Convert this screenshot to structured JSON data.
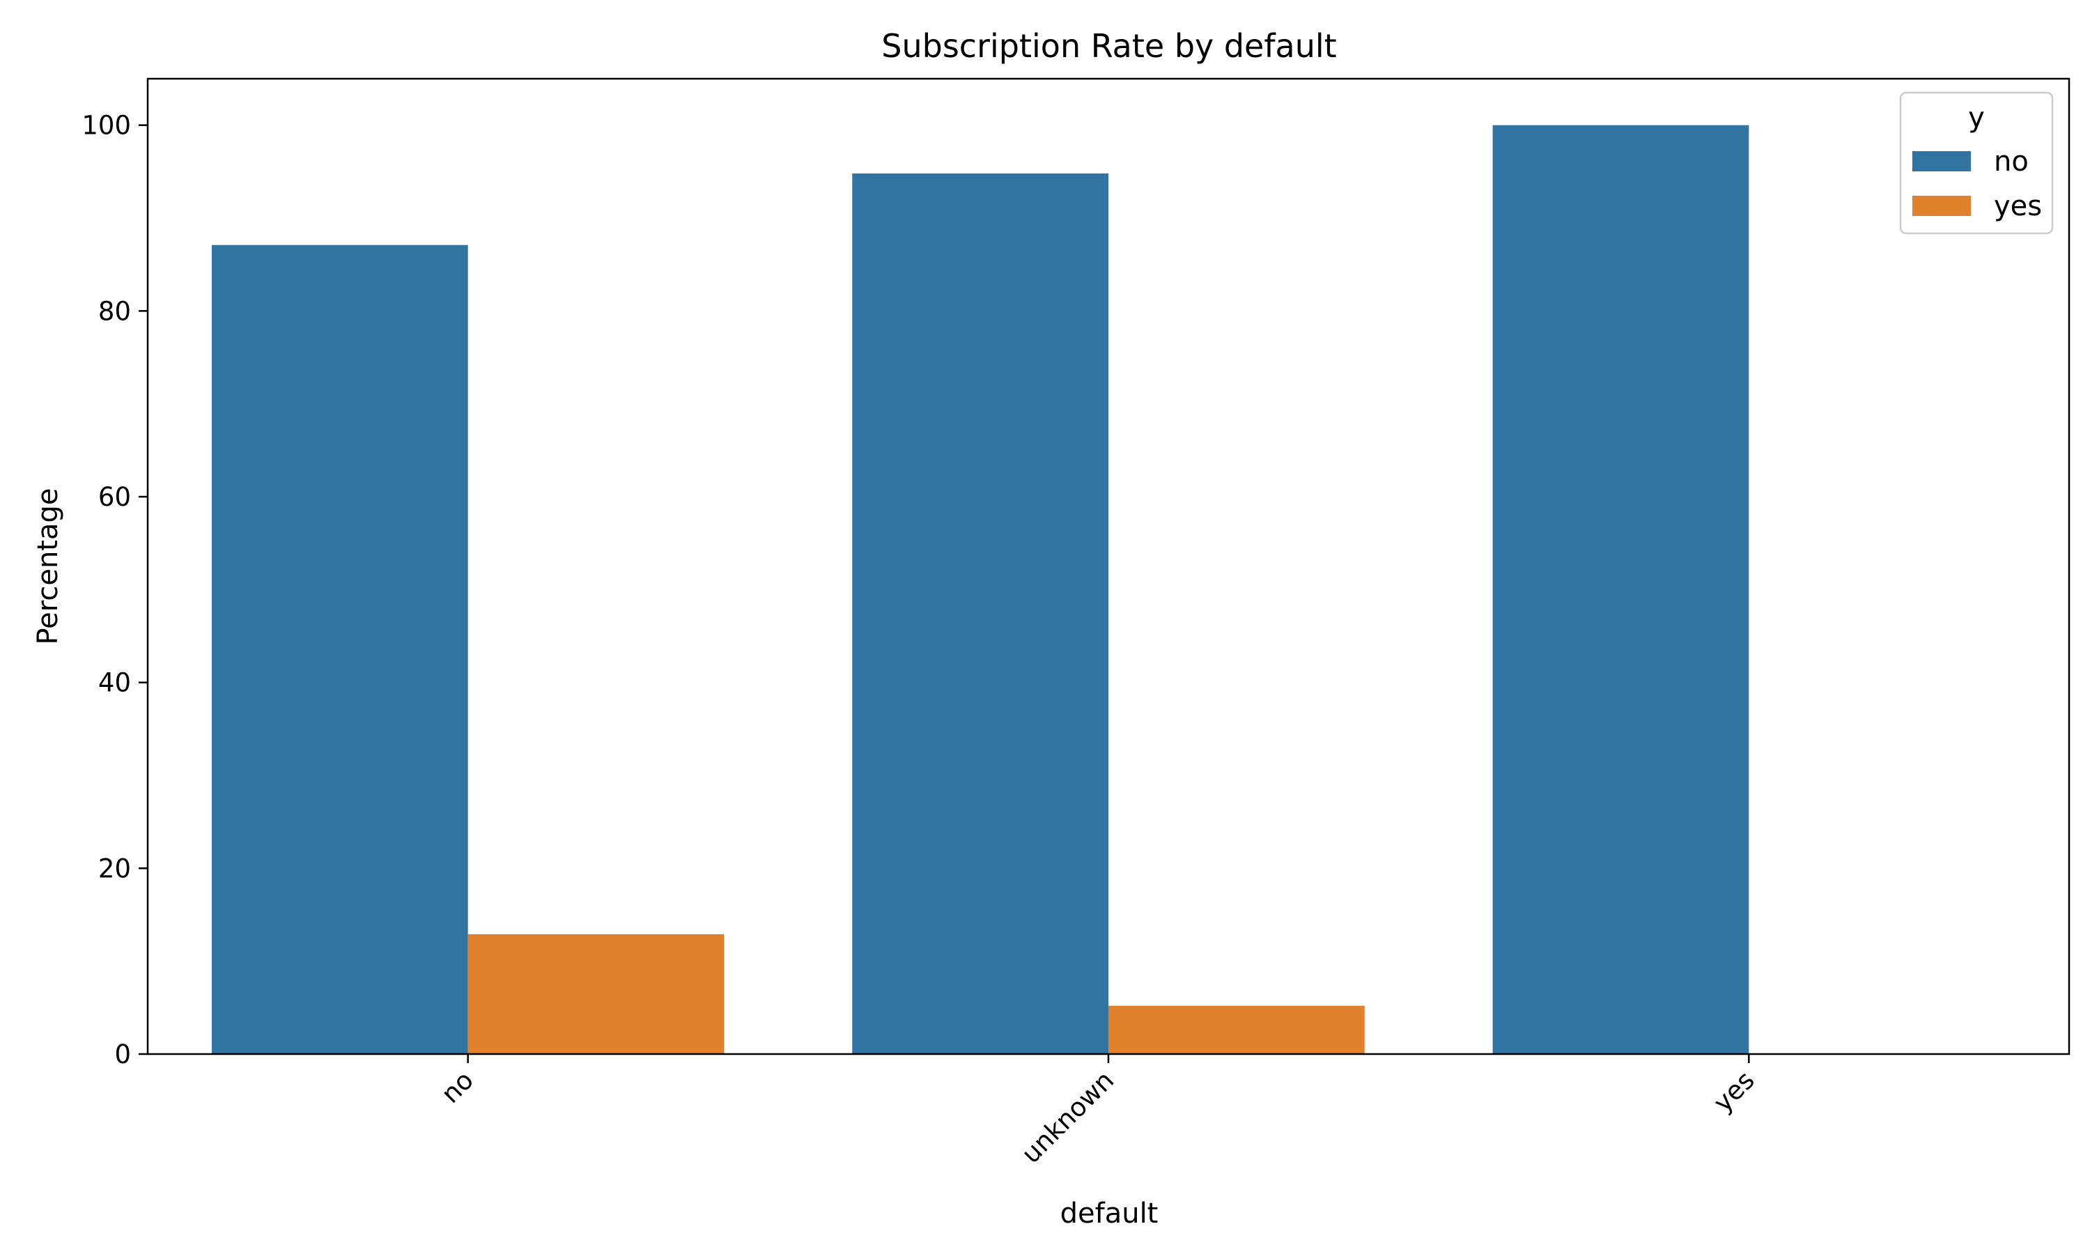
{
  "chart_data": {
    "type": "bar",
    "title": "Subscription Rate by default",
    "xlabel": "default",
    "ylabel": "Percentage",
    "categories": [
      "no",
      "unknown",
      "yes"
    ],
    "series": [
      {
        "name": "no",
        "color": "#3274a1",
        "values": [
          87.1,
          94.8,
          100.0
        ]
      },
      {
        "name": "yes",
        "color": "#e1812c",
        "values": [
          12.9,
          5.2,
          0.0
        ]
      }
    ],
    "ylim": [
      0,
      105
    ],
    "yticks": [
      0,
      20,
      40,
      60,
      80,
      100
    ],
    "grid": false,
    "legend": {
      "title": "y",
      "placement": "top-right"
    }
  }
}
